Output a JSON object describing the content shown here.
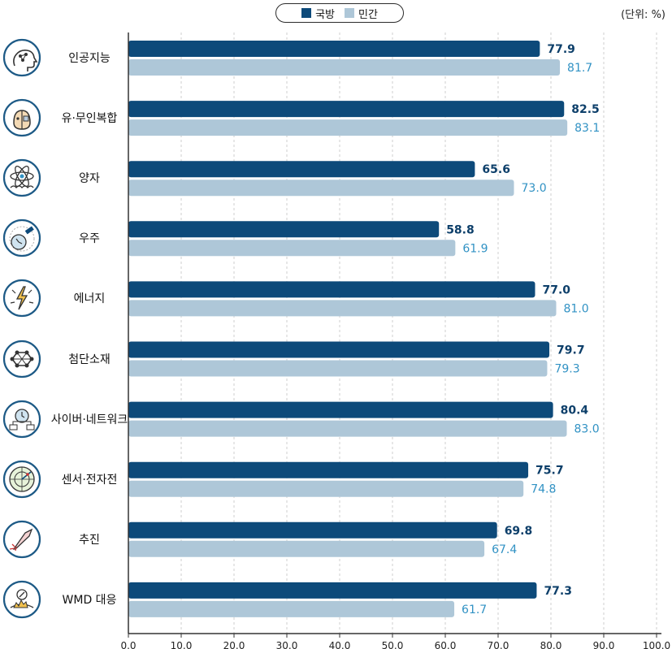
{
  "chart_data": {
    "type": "bar",
    "orientation": "horizontal",
    "unit_label": "(단위: %)",
    "categories": [
      "인공지능",
      "유·무인복합",
      "양자",
      "우주",
      "에너지",
      "첨단소재",
      "사이버·네트워크",
      "센서·전자전",
      "추진",
      "WMD 대응"
    ],
    "series": [
      {
        "name": "국방",
        "color": "#0d4a7a",
        "label_color": "#0d3f6a",
        "values": [
          77.9,
          82.5,
          65.6,
          58.8,
          77.0,
          79.7,
          80.4,
          75.7,
          69.8,
          77.3
        ]
      },
      {
        "name": "민간",
        "color": "#aec7d8",
        "label_color": "#3192c4",
        "values": [
          81.7,
          83.1,
          73.0,
          61.9,
          81.0,
          79.3,
          83.0,
          74.8,
          67.4,
          61.7
        ]
      }
    ],
    "xlim": [
      0,
      100
    ],
    "xticks": [
      "0.0",
      "10.0",
      "20.0",
      "30.0",
      "40.0",
      "50.0",
      "60.0",
      "70.0",
      "80.0",
      "90.0",
      "100.0"
    ],
    "grid": true,
    "legend_position": "top-center",
    "icons": [
      "brain-head-icon",
      "robot-face-icon",
      "atom-icon",
      "satellite-icon",
      "lightning-icon",
      "molecule-icon",
      "network-clock-icon",
      "radar-icon",
      "rocket-icon",
      "hazard-icon"
    ]
  }
}
